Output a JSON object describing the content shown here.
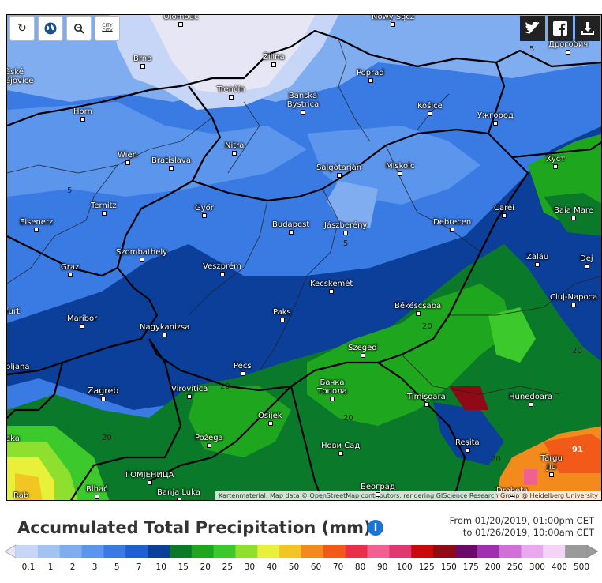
{
  "toolbar": {
    "refresh_icon": "refresh-icon",
    "globe_icon": "globe-icon",
    "zoom_out_icon": "zoom-out-icon",
    "city_label_top": "CITY",
    "city_label_bottom": "CITY"
  },
  "share": {
    "twitter_icon": "twitter-icon",
    "facebook_icon": "facebook-icon",
    "download_icon": "download-icon"
  },
  "attribution": "Kartenmaterial: Map data © OpenStreetMap contributors, rendering GIScience Research Group @ Heidelberg University",
  "cities": [
    {
      "name": "Olomouc"
    },
    {
      "name": "Nowy Sącz"
    },
    {
      "name": "Brno"
    },
    {
      "name": "Žilina"
    },
    {
      "name": "Дрогобич"
    },
    {
      "name": "Poprad"
    },
    {
      "name": "Trenčín"
    },
    {
      "name": "Banská Bystrica"
    },
    {
      "name": "Košice"
    },
    {
      "name": "Ужгород"
    },
    {
      "name": "Horn"
    },
    {
      "name": "Nitra"
    },
    {
      "name": "Wien"
    },
    {
      "name": "Bratislava"
    },
    {
      "name": "Salgótarján"
    },
    {
      "name": "Miskolc"
    },
    {
      "name": "Хуст"
    },
    {
      "name": "Ternitz"
    },
    {
      "name": "Győr"
    },
    {
      "name": "Carei"
    },
    {
      "name": "Baia Mare"
    },
    {
      "name": "Eisenerz"
    },
    {
      "name": "Budapest"
    },
    {
      "name": "Jászberény"
    },
    {
      "name": "Debrecen"
    },
    {
      "name": "Szombathely"
    },
    {
      "name": "Zalău"
    },
    {
      "name": "Graz"
    },
    {
      "name": "Veszprém"
    },
    {
      "name": "Kecskemét"
    },
    {
      "name": "Cluj-Napoca"
    },
    {
      "name": "Maribor"
    },
    {
      "name": "Paks"
    },
    {
      "name": "Békéscsaba"
    },
    {
      "name": "Nagykanizsa"
    },
    {
      "name": "Szeged"
    },
    {
      "name": "Pécs"
    },
    {
      "name": "Бачка Топола"
    },
    {
      "name": "Zagreb"
    },
    {
      "name": "Virovitica"
    },
    {
      "name": "Timișoara"
    },
    {
      "name": "Hunedoara"
    },
    {
      "name": "Osijek"
    },
    {
      "name": "Požega"
    },
    {
      "name": "Нови Сад"
    },
    {
      "name": "Reșița"
    },
    {
      "name": "Târgu Jiu"
    },
    {
      "name": "Bihać"
    },
    {
      "name": "ГОМЈЕНИЦА"
    },
    {
      "name": "Banja Luka"
    },
    {
      "name": "Београд"
    },
    {
      "name": "Drobeta"
    },
    {
      "name": "Ljubljana"
    },
    {
      "name": "Dej"
    }
  ],
  "edge_labels": [
    "ěské",
    "ějovice",
    "furt",
    "bljana",
    "eka",
    "Rab"
  ],
  "isolines": [
    "5",
    "5",
    "5",
    "20",
    "20",
    "20",
    "20",
    "20",
    "20",
    "91"
  ],
  "legend": {
    "title": "Accumulated Total Precipitation (mm)",
    "info_icon": "info-icon",
    "from": "From 01/20/2019, 01:00pm CET",
    "to": "to 01/26/2019, 10:00am CET",
    "scale_labels": [
      "0.1",
      "1",
      "2",
      "3",
      "5",
      "7",
      "10",
      "15",
      "20",
      "25",
      "30",
      "40",
      "50",
      "60",
      "70",
      "80",
      "90",
      "100",
      "125",
      "150",
      "175",
      "200",
      "250",
      "300",
      "400",
      "500"
    ],
    "scale_colors": [
      "#e6e6f5",
      "#c7d6f7",
      "#a4c2f4",
      "#80acf0",
      "#5c95ec",
      "#3a7ae3",
      "#1f5fd1",
      "#0b3f99",
      "#0a7a2a",
      "#1fa61f",
      "#3cc92b",
      "#8fe02e",
      "#e8f03a",
      "#f2c522",
      "#f28a1c",
      "#f25a1a",
      "#e8304a",
      "#f06090",
      "#e03870",
      "#c80a0a",
      "#8f0a14",
      "#6b0a6b",
      "#a030b0",
      "#d070d8",
      "#eaa8ee",
      "#f4d4f6",
      "#9a9a9a"
    ]
  }
}
